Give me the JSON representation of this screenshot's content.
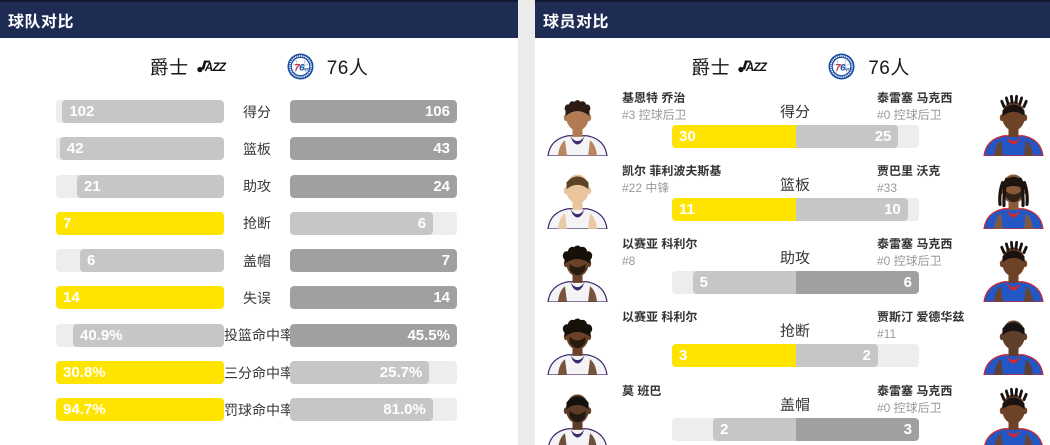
{
  "colors": {
    "header_navy": "#1e2b52",
    "jazz_highlight_yellow": "#ffe400",
    "sixers_highlight_gray": "#a0a0a0",
    "loser_gray": "#c6c6c6",
    "bar_track": "#ededed",
    "sixers_logo_blue": "#1d50a2",
    "sixers_logo_red": "#d6272e"
  },
  "team_panel": {
    "title": "球队对比",
    "home_team": {
      "name": "爵士",
      "logo": "jazz-logo"
    },
    "away_team": {
      "name": "76人",
      "logo": "sixers-logo"
    },
    "rows": [
      {
        "label": "得分",
        "left": "102",
        "right": "106",
        "left_num": 102,
        "right_num": 106
      },
      {
        "label": "篮板",
        "left": "42",
        "right": "43",
        "left_num": 42,
        "right_num": 43
      },
      {
        "label": "助攻",
        "left": "21",
        "right": "24",
        "left_num": 21,
        "right_num": 24
      },
      {
        "label": "抢断",
        "left": "7",
        "right": "6",
        "left_num": 7,
        "right_num": 6
      },
      {
        "label": "盖帽",
        "left": "6",
        "right": "7",
        "left_num": 6,
        "right_num": 7
      },
      {
        "label": "失误",
        "left": "14",
        "right": "14",
        "left_num": 14,
        "right_num": 14
      },
      {
        "label": "投篮命中率",
        "left": "40.9%",
        "right": "45.5%",
        "left_num": 40.9,
        "right_num": 45.5
      },
      {
        "label": "三分命中率",
        "left": "30.8%",
        "right": "25.7%",
        "left_num": 30.8,
        "right_num": 25.7
      },
      {
        "label": "罚球命中率",
        "left": "94.7%",
        "right": "81.0%",
        "left_num": 94.7,
        "right_num": 81.0
      }
    ]
  },
  "player_panel": {
    "title": "球员对比",
    "home_team": {
      "name": "爵士",
      "logo": "jazz-logo"
    },
    "away_team": {
      "name": "76人",
      "logo": "sixers-logo"
    },
    "rows": [
      {
        "label": "得分",
        "left": {
          "name": "基恩特 乔治",
          "sub": "#3 控球后卫",
          "value": "30",
          "num": 30,
          "avatar": {
            "skin": "#b07a52",
            "hair": "#2a1c12",
            "style": "curls",
            "beard": false,
            "jersey": "#f4f4f6",
            "trim": "#3d2a6e"
          }
        },
        "right": {
          "name": "泰雷塞 马克西",
          "sub": "#0 控球后卫",
          "value": "25",
          "num": 25,
          "avatar": {
            "skin": "#6e4226",
            "hair": "#191210",
            "style": "twists",
            "beard": false,
            "jersey": "#2257c5",
            "trim": "#d6272e"
          }
        }
      },
      {
        "label": "篮板",
        "left": {
          "name": "凯尔 菲利波夫斯基",
          "sub": "#22 中锋",
          "value": "11",
          "num": 11,
          "avatar": {
            "skin": "#e9c49c",
            "hair": "#5d4426",
            "style": "short",
            "beard": false,
            "jersey": "#f4f4f6",
            "trim": "#3d2a6e"
          }
        },
        "right": {
          "name": "贾巴里 沃克",
          "sub": "#33",
          "value": "10",
          "num": 10,
          "avatar": {
            "skin": "#8a5a38",
            "hair": "#1c1410",
            "style": "dreads",
            "beard": true,
            "jersey": "#2257c5",
            "trim": "#d6272e"
          }
        }
      },
      {
        "label": "助攻",
        "left": {
          "name": "以赛亚 科利尔",
          "sub": "#8",
          "value": "5",
          "num": 5,
          "avatar": {
            "skin": "#6b4228",
            "hair": "#161009",
            "style": "afro",
            "beard": true,
            "jersey": "#f4f4f6",
            "trim": "#3d2a6e"
          }
        },
        "right": {
          "name": "泰雷塞 马克西",
          "sub": "#0 控球后卫",
          "value": "6",
          "num": 6,
          "avatar": {
            "skin": "#6e4226",
            "hair": "#191210",
            "style": "twists",
            "beard": false,
            "jersey": "#2257c5",
            "trim": "#d6272e"
          }
        }
      },
      {
        "label": "抢断",
        "left": {
          "name": "以赛亚 科利尔",
          "sub": "",
          "value": "3",
          "num": 3,
          "avatar": {
            "skin": "#6b4228",
            "hair": "#161009",
            "style": "afro",
            "beard": true,
            "jersey": "#f4f4f6",
            "trim": "#3d2a6e"
          }
        },
        "right": {
          "name": "贾斯汀 爱德华兹",
          "sub": "#11",
          "value": "2",
          "num": 2,
          "avatar": {
            "skin": "#5f3e2a",
            "hair": "#171210",
            "style": "short",
            "beard": false,
            "jersey": "#2257c5",
            "trim": "#d6272e"
          }
        }
      },
      {
        "label": "盖帽",
        "left": {
          "name": "莫 班巴",
          "sub": "",
          "value": "2",
          "num": 2,
          "avatar": {
            "skin": "#5d3d28",
            "hair": "#14100c",
            "style": "short",
            "beard": true,
            "jersey": "#f4f4f6",
            "trim": "#3d2a6e"
          }
        },
        "right": {
          "name": "泰雷塞 马克西",
          "sub": "#0 控球后卫",
          "value": "3",
          "num": 3,
          "avatar": {
            "skin": "#6e4226",
            "hair": "#191210",
            "style": "twists",
            "beard": false,
            "jersey": "#2257c5",
            "trim": "#d6272e"
          }
        }
      }
    ]
  },
  "logos": {
    "jazz_wordmark": "AZZ",
    "jazz_note_icon": "music-note-J",
    "sixers_digit_7": "7",
    "sixers_digit_6": "6",
    "sixers_suffix": "ers"
  }
}
